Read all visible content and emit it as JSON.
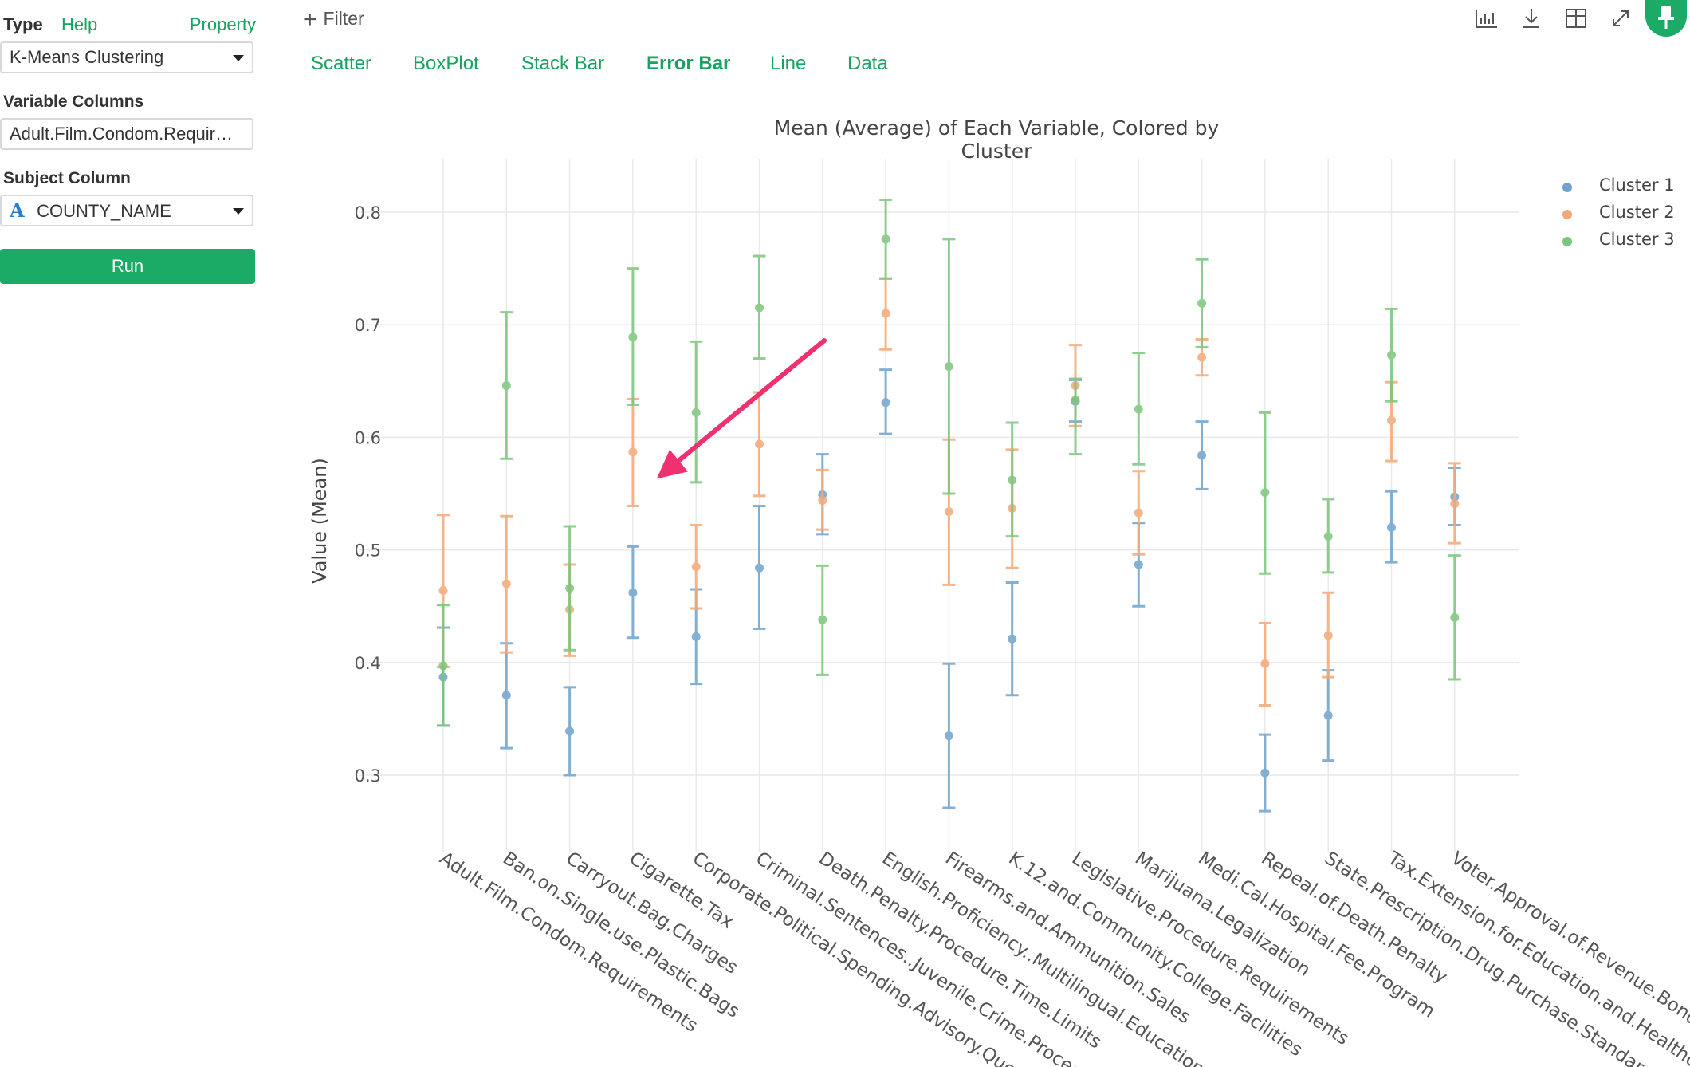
{
  "panel": {
    "type_label": "Type",
    "help_label": "Help",
    "property_label": "Property",
    "type_value": "K-Means Clustering",
    "variable_columns_label": "Variable Columns",
    "variable_columns_value": "Adult.Film.Condom.Requir…",
    "subject_column_label": "Subject Column",
    "subject_column_type_icon": "A",
    "subject_column_value": "COUNTY_NAME",
    "run_label": "Run"
  },
  "toolbar": {
    "filter_label": "Filter",
    "icons": [
      "bar-chart-icon",
      "download-icon",
      "grid-icon",
      "expand-icon",
      "pin-icon"
    ]
  },
  "tabs": [
    {
      "label": "Scatter",
      "active": false
    },
    {
      "label": "BoxPlot",
      "active": false
    },
    {
      "label": "Stack Bar",
      "active": false
    },
    {
      "label": "Error Bar",
      "active": true
    },
    {
      "label": "Line",
      "active": false
    },
    {
      "label": "Data",
      "active": false
    }
  ],
  "colors": {
    "accent": "#1cab67",
    "cluster1": "#6fa3cd",
    "cluster2": "#f5a877",
    "cluster3": "#7cc67c",
    "arrow": "#f0306f"
  },
  "chart_data": {
    "type": "scatter",
    "title": "Mean (Average) of Each Variable, Colored by Cluster",
    "xlabel": "",
    "ylabel": "Value (Mean)",
    "ylim": [
      0.26,
      0.84
    ],
    "yticks": [
      0.3,
      0.4,
      0.5,
      0.6,
      0.7,
      0.8
    ],
    "ytick_labels": [
      "0.3",
      "0.4",
      "0.5",
      "0.6",
      "0.7",
      "0.8"
    ],
    "grid": true,
    "legend_position": "top-right",
    "categories": [
      "Adult.Film.Condom.Requirements",
      "Ban.on.Single.use.Plastic.Bags",
      "Carryout.Bag.Charges",
      "Cigarette.Tax",
      "Corporate.Political.Spending.Advisory.Question",
      "Criminal.Sentences..Juvenile.Crime.Proceedings",
      "Death.Penalty.Procedure.Time.Limits",
      "English.Proficiency..Multilingual.Education.",
      "Firearms.and.Ammunition.Sales",
      "K.12.and.Community.College.Facilities",
      "Legislative.Procedure.Requirements",
      "Marijuana.Legalization",
      "Medi.Cal.Hospital.Fee.Program",
      "Repeal.of.Death.Penalty",
      "State.Prescription.Drug.Purchase.Standards",
      "Tax.Extension.for.Education.and.Healthcare",
      "Voter.Approval.of.Revenue.Bonds"
    ],
    "series": [
      {
        "name": "Cluster 1",
        "color": "#6fa3cd",
        "values": [
          0.387,
          0.371,
          0.339,
          0.462,
          0.423,
          0.484,
          0.549,
          0.631,
          0.335,
          0.421,
          0.632,
          0.487,
          0.584,
          0.302,
          0.353,
          0.52,
          0.547
        ],
        "err_low": [
          0.344,
          0.324,
          0.3,
          0.422,
          0.381,
          0.43,
          0.514,
          0.603,
          0.271,
          0.371,
          0.614,
          0.45,
          0.554,
          0.268,
          0.313,
          0.489,
          0.522
        ],
        "err_high": [
          0.431,
          0.417,
          0.378,
          0.503,
          0.465,
          0.539,
          0.585,
          0.66,
          0.399,
          0.471,
          0.651,
          0.524,
          0.614,
          0.336,
          0.393,
          0.552,
          0.573
        ]
      },
      {
        "name": "Cluster 2",
        "color": "#f5a877",
        "values": [
          0.464,
          0.47,
          0.447,
          0.587,
          0.485,
          0.594,
          0.544,
          0.71,
          0.534,
          0.537,
          0.646,
          0.533,
          0.671,
          0.399,
          0.424,
          0.615,
          0.541
        ],
        "err_low": [
          0.396,
          0.409,
          0.406,
          0.539,
          0.448,
          0.548,
          0.518,
          0.678,
          0.469,
          0.484,
          0.61,
          0.496,
          0.655,
          0.362,
          0.387,
          0.579,
          0.506
        ],
        "err_high": [
          0.531,
          0.53,
          0.487,
          0.634,
          0.522,
          0.64,
          0.571,
          0.741,
          0.598,
          0.589,
          0.682,
          0.57,
          0.687,
          0.435,
          0.462,
          0.649,
          0.577
        ]
      },
      {
        "name": "Cluster 3",
        "color": "#7cc67c",
        "values": [
          0.397,
          0.646,
          0.466,
          0.689,
          0.622,
          0.715,
          0.438,
          0.776,
          0.663,
          0.562,
          0.633,
          0.625,
          0.719,
          0.551,
          0.512,
          0.673,
          0.44
        ],
        "err_low": [
          0.344,
          0.581,
          0.411,
          0.629,
          0.56,
          0.67,
          0.389,
          0.741,
          0.55,
          0.512,
          0.585,
          0.576,
          0.68,
          0.479,
          0.48,
          0.632,
          0.385
        ],
        "err_high": [
          0.451,
          0.711,
          0.521,
          0.75,
          0.685,
          0.761,
          0.486,
          0.811,
          0.776,
          0.613,
          0.652,
          0.675,
          0.758,
          0.622,
          0.545,
          0.714,
          0.495
        ]
      }
    ],
    "annotations": [
      {
        "type": "arrow",
        "color": "#f0306f",
        "points_to": "Cigarette.Tax"
      }
    ]
  }
}
